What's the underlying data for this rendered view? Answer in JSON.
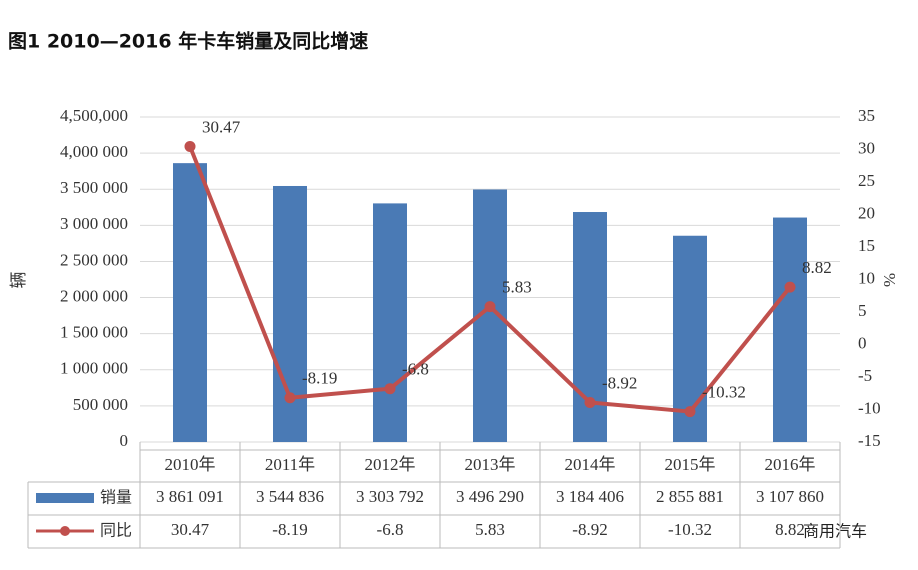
{
  "chart_data": {
    "type": "bar-line",
    "title": "图1  2010—2016 年卡车销量及同比增速",
    "y_label": "辆",
    "y2_label": "%",
    "categories": [
      "2010年",
      "2011年",
      "2012年",
      "2013年",
      "2014年",
      "2015年",
      "2016年"
    ],
    "series": [
      {
        "name": "销量",
        "type": "bar",
        "color": "#4a7ab5",
        "values": [
          3861091,
          3544836,
          3303792,
          3496290,
          3184406,
          2855881,
          3107860
        ],
        "value_labels": [
          "3 861 091",
          "3 544 836",
          "3 303 792",
          "3 496 290",
          "3 184 406",
          "2 855 881",
          "3 107 860"
        ]
      },
      {
        "name": "同比",
        "type": "line",
        "color": "#c0504d",
        "axis": "y2",
        "values": [
          30.47,
          -8.19,
          -6.8,
          5.83,
          -8.92,
          -10.32,
          8.82
        ]
      }
    ],
    "ylim": [
      0,
      4500000
    ],
    "yticks": [
      {
        "value": 0,
        "label": "0"
      },
      {
        "value": 500000,
        "label": "500 000"
      },
      {
        "value": 1000000,
        "label": "1 000 000"
      },
      {
        "value": 1500000,
        "label": "1 500 000"
      },
      {
        "value": 2000000,
        "label": "2 000 000"
      },
      {
        "value": 2500000,
        "label": "2 500 000"
      },
      {
        "value": 3000000,
        "label": "3 000 000"
      },
      {
        "value": 3500000,
        "label": "3 500 000"
      },
      {
        "value": 4000000,
        "label": "4,000 000"
      },
      {
        "value": 4500000,
        "label": "4,500,000"
      }
    ],
    "y2lim": [
      -15,
      35
    ],
    "y2ticks": [
      -15,
      -10,
      -5,
      0,
      5,
      10,
      15,
      20,
      25,
      30,
      35
    ],
    "grid": true,
    "watermark": "商用汽车"
  }
}
